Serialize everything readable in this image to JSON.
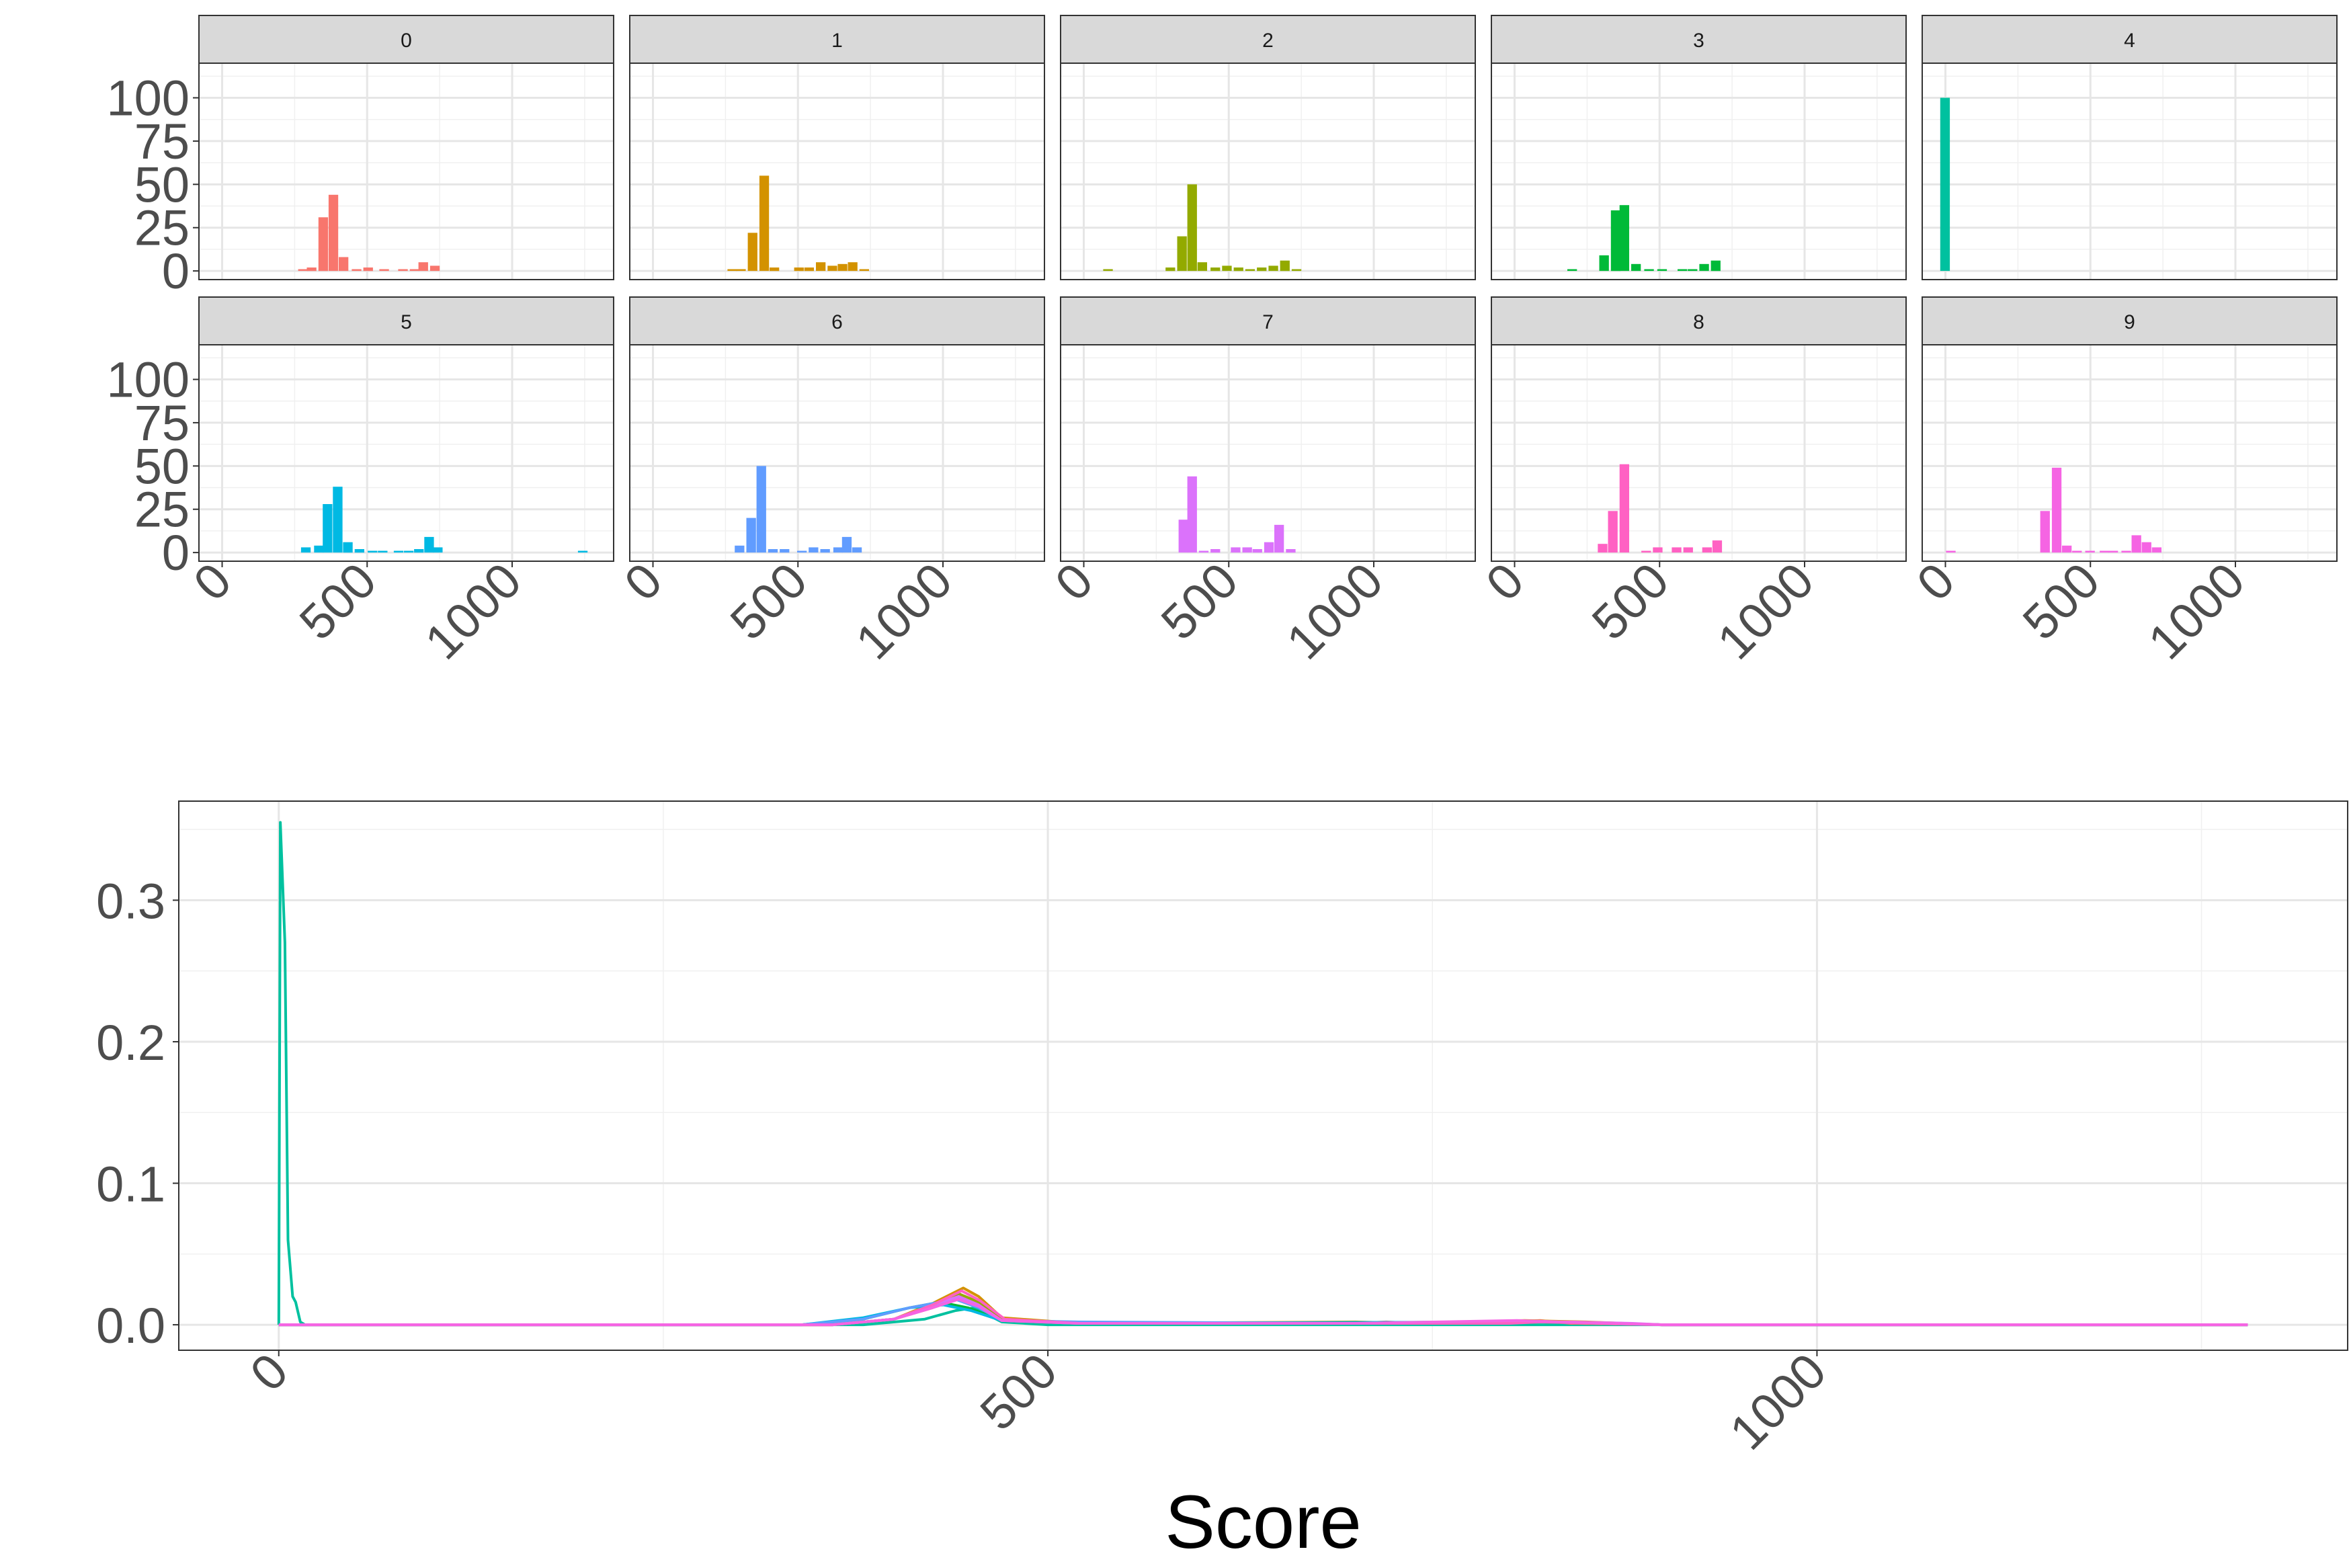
{
  "chart_data": [
    {
      "type": "bar",
      "kind": "faceted-histogram",
      "facets": [
        {
          "label": "0",
          "color": "#F8766D",
          "bars": [
            [
              280,
              1
            ],
            [
              310,
              2
            ],
            [
              350,
              31
            ],
            [
              385,
              44
            ],
            [
              420,
              8
            ],
            [
              465,
              1
            ],
            [
              505,
              2
            ],
            [
              560,
              1
            ],
            [
              625,
              1
            ],
            [
              665,
              1
            ],
            [
              695,
              5
            ],
            [
              735,
              3
            ]
          ]
        },
        {
          "label": "1",
          "color": "#D39200",
          "bars": [
            [
              275,
              1
            ],
            [
              305,
              1
            ],
            [
              345,
              22
            ],
            [
              385,
              55
            ],
            [
              420,
              2
            ],
            [
              505,
              2
            ],
            [
              540,
              2
            ],
            [
              580,
              5
            ],
            [
              620,
              3
            ],
            [
              655,
              4
            ],
            [
              690,
              5
            ],
            [
              730,
              1
            ]
          ]
        },
        {
          "label": "2",
          "color": "#93AA00",
          "bars": [
            [
              85,
              1
            ],
            [
              300,
              2
            ],
            [
              340,
              20
            ],
            [
              375,
              50
            ],
            [
              410,
              5
            ],
            [
              455,
              2
            ],
            [
              495,
              3
            ],
            [
              535,
              2
            ],
            [
              575,
              1
            ],
            [
              615,
              2
            ],
            [
              655,
              3
            ],
            [
              695,
              6
            ],
            [
              735,
              1
            ]
          ]
        },
        {
          "label": "3",
          "color": "#00BA38",
          "bars": [
            [
              200,
              1
            ],
            [
              310,
              9
            ],
            [
              350,
              35
            ],
            [
              380,
              38
            ],
            [
              420,
              4
            ],
            [
              465,
              1
            ],
            [
              510,
              1
            ],
            [
              580,
              1
            ],
            [
              615,
              1
            ],
            [
              655,
              4
            ],
            [
              695,
              6
            ]
          ]
        },
        {
          "label": "4",
          "color": "#00C19F",
          "bars": [
            [
              0,
              100
            ]
          ]
        },
        {
          "label": "5",
          "color": "#00B9E3",
          "bars": [
            [
              290,
              3
            ],
            [
              335,
              4
            ],
            [
              365,
              28
            ],
            [
              400,
              38
            ],
            [
              435,
              6
            ],
            [
              475,
              2
            ],
            [
              520,
              1
            ],
            [
              555,
              1
            ],
            [
              610,
              1
            ],
            [
              645,
              1
            ],
            [
              680,
              2
            ],
            [
              715,
              9
            ],
            [
              745,
              3
            ],
            [
              1245,
              1
            ]
          ]
        },
        {
          "label": "6",
          "color": "#619CFF",
          "bars": [
            [
              300,
              4
            ],
            [
              340,
              20
            ],
            [
              375,
              50
            ],
            [
              415,
              2
            ],
            [
              455,
              2
            ],
            [
              515,
              1
            ],
            [
              555,
              3
            ],
            [
              595,
              2
            ],
            [
              640,
              3
            ],
            [
              670,
              9
            ],
            [
              705,
              3
            ]
          ]
        },
        {
          "label": "7",
          "color": "#DB72FB",
          "bars": [
            [
              345,
              19
            ],
            [
              375,
              44
            ],
            [
              415,
              1
            ],
            [
              455,
              2
            ],
            [
              525,
              3
            ],
            [
              565,
              3
            ],
            [
              600,
              2
            ],
            [
              640,
              6
            ],
            [
              675,
              16
            ],
            [
              715,
              2
            ]
          ]
        },
        {
          "label": "8",
          "color": "#FF61C3",
          "bars": [
            [
              305,
              5
            ],
            [
              340,
              24
            ],
            [
              380,
              51
            ],
            [
              455,
              1
            ],
            [
              495,
              3
            ],
            [
              560,
              3
            ],
            [
              600,
              3
            ],
            [
              665,
              3
            ],
            [
              700,
              7
            ]
          ]
        },
        {
          "label": "9",
          "color": "#F564E3",
          "bars": [
            [
              20,
              1
            ],
            [
              345,
              24
            ],
            [
              385,
              49
            ],
            [
              420,
              4
            ],
            [
              455,
              1
            ],
            [
              500,
              1
            ],
            [
              550,
              1
            ],
            [
              580,
              1
            ],
            [
              625,
              1
            ],
            [
              660,
              10
            ],
            [
              695,
              6
            ],
            [
              730,
              3
            ]
          ]
        }
      ],
      "xlim": [
        -80,
        1350
      ],
      "ylim": [
        -5,
        120
      ],
      "x_ticks": [
        "0",
        "500",
        "1000"
      ],
      "y_ticks": [
        "0",
        "25",
        "50",
        "75",
        "100"
      ],
      "bin_width": 36,
      "grid": true,
      "legend": "none"
    },
    {
      "type": "line",
      "kind": "density",
      "xlabel": "Score",
      "ylabel": "",
      "xlim": [
        -65,
        1345
      ],
      "ylim": [
        -0.018,
        0.37
      ],
      "x_ticks": [
        "0",
        "500",
        "1000"
      ],
      "y_ticks": [
        "0.0",
        "0.1",
        "0.2",
        "0.3"
      ],
      "grid": true,
      "legend": "none",
      "series": [
        {
          "color": "#00C19F",
          "points": [
            [
              0,
              0
            ],
            [
              1,
              0.355
            ],
            [
              4,
              0.27
            ],
            [
              6,
              0.06
            ],
            [
              9,
              0.02
            ],
            [
              11,
              0.016
            ],
            [
              14,
              0.002
            ],
            [
              17,
              0
            ],
            [
              380,
              0
            ],
            [
              420,
              0.004
            ],
            [
              440,
              0.01
            ],
            [
              452,
              0.012
            ],
            [
              470,
              0.002
            ],
            [
              500,
              0
            ],
            [
              1280,
              0
            ]
          ]
        },
        {
          "color": "#F8766D",
          "points": [
            [
              0,
              0
            ],
            [
              360,
              0
            ],
            [
              400,
              0.004
            ],
            [
              425,
              0.012
            ],
            [
              440,
              0.02
            ],
            [
              452,
              0.016
            ],
            [
              470,
              0.003
            ],
            [
              520,
              0.001
            ],
            [
              700,
              0.001
            ],
            [
              720,
              0.002
            ],
            [
              740,
              0.001
            ],
            [
              800,
              0.002
            ],
            [
              820,
              0.003
            ],
            [
              840,
              0.001
            ],
            [
              900,
              0
            ],
            [
              1280,
              0
            ]
          ]
        },
        {
          "color": "#D39200",
          "points": [
            [
              0,
              0
            ],
            [
              360,
              0
            ],
            [
              400,
              0.004
            ],
            [
              425,
              0.015
            ],
            [
              445,
              0.026
            ],
            [
              455,
              0.02
            ],
            [
              470,
              0.005
            ],
            [
              520,
              0.001
            ],
            [
              700,
              0.002
            ],
            [
              740,
              0.001
            ],
            [
              810,
              0.003
            ],
            [
              850,
              0.002
            ],
            [
              900,
              0
            ],
            [
              1280,
              0
            ]
          ]
        },
        {
          "color": "#93AA00",
          "points": [
            [
              0,
              0
            ],
            [
              360,
              0
            ],
            [
              400,
              0.004
            ],
            [
              425,
              0.013
            ],
            [
              442,
              0.022
            ],
            [
              455,
              0.016
            ],
            [
              470,
              0.004
            ],
            [
              520,
              0.001
            ],
            [
              780,
              0.001
            ],
            [
              820,
              0.002
            ],
            [
              860,
              0.001
            ],
            [
              900,
              0
            ],
            [
              1280,
              0
            ]
          ]
        },
        {
          "color": "#00BA38",
          "points": [
            [
              0,
              0
            ],
            [
              340,
              0
            ],
            [
              380,
              0.004
            ],
            [
              410,
              0.012
            ],
            [
              430,
              0.016
            ],
            [
              448,
              0.012
            ],
            [
              470,
              0.003
            ],
            [
              520,
              0.001
            ],
            [
              820,
              0.002
            ],
            [
              860,
              0.001
            ],
            [
              900,
              0
            ],
            [
              1280,
              0
            ]
          ]
        },
        {
          "color": "#00B9E3",
          "points": [
            [
              0,
              0
            ],
            [
              340,
              0
            ],
            [
              380,
              0.005
            ],
            [
              410,
              0.012
            ],
            [
              432,
              0.014
            ],
            [
              450,
              0.01
            ],
            [
              470,
              0.003
            ],
            [
              520,
              0.001
            ],
            [
              800,
              0.002
            ],
            [
              830,
              0.002
            ],
            [
              870,
              0.001
            ],
            [
              900,
              0
            ],
            [
              1280,
              0
            ]
          ]
        },
        {
          "color": "#619CFF",
          "points": [
            [
              0,
              0
            ],
            [
              340,
              0
            ],
            [
              380,
              0.004
            ],
            [
              410,
              0.012
            ],
            [
              440,
              0.018
            ],
            [
              455,
              0.012
            ],
            [
              470,
              0.003
            ],
            [
              520,
              0.002
            ],
            [
              700,
              0.001
            ],
            [
              820,
              0.002
            ],
            [
              860,
              0.001
            ],
            [
              900,
              0
            ],
            [
              1280,
              0
            ]
          ]
        },
        {
          "color": "#DB72FB",
          "points": [
            [
              0,
              0
            ],
            [
              360,
              0
            ],
            [
              400,
              0.004
            ],
            [
              425,
              0.014
            ],
            [
              442,
              0.02
            ],
            [
              455,
              0.014
            ],
            [
              470,
              0.003
            ],
            [
              520,
              0.001
            ],
            [
              700,
              0.001
            ],
            [
              810,
              0.002
            ],
            [
              840,
              0.002
            ],
            [
              880,
              0.001
            ],
            [
              900,
              0
            ],
            [
              1280,
              0
            ]
          ]
        },
        {
          "color": "#FF61C3",
          "points": [
            [
              0,
              0
            ],
            [
              360,
              0
            ],
            [
              400,
              0.004
            ],
            [
              425,
              0.014
            ],
            [
              444,
              0.024
            ],
            [
              456,
              0.017
            ],
            [
              472,
              0.004
            ],
            [
              520,
              0.001
            ],
            [
              700,
              0.001
            ],
            [
              800,
              0.001
            ],
            [
              820,
              0.002
            ],
            [
              860,
              0.001
            ],
            [
              900,
              0
            ],
            [
              1280,
              0
            ]
          ]
        },
        {
          "color": "#F564E3",
          "points": [
            [
              0,
              0
            ],
            [
              360,
              0
            ],
            [
              400,
              0.004
            ],
            [
              425,
              0.012
            ],
            [
              442,
              0.018
            ],
            [
              455,
              0.013
            ],
            [
              470,
              0.003
            ],
            [
              520,
              0.001
            ],
            [
              700,
              0.001
            ],
            [
              805,
              0.003
            ],
            [
              835,
              0.002
            ],
            [
              870,
              0.001
            ],
            [
              900,
              0
            ],
            [
              1280,
              0
            ]
          ]
        }
      ]
    }
  ]
}
